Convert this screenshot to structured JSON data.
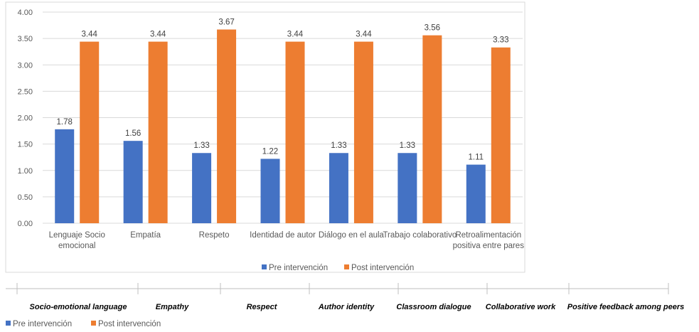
{
  "chart_data": {
    "type": "bar",
    "title": "",
    "xlabel": "",
    "ylabel": "",
    "ylim": [
      0,
      4
    ],
    "yticks": [
      "0.00",
      "0.50",
      "1.00",
      "1.50",
      "2.00",
      "2.50",
      "3.00",
      "3.50",
      "4.00"
    ],
    "grid": true,
    "legend_position": "bottom",
    "categories": [
      [
        "Lenguaje Socio",
        "emocional"
      ],
      [
        "Empatía"
      ],
      [
        "Respeto"
      ],
      [
        "Identidad de autor"
      ],
      [
        "Diálogo en el aula"
      ],
      [
        "Trabajo colaborativo"
      ],
      [
        "Retroalimentación",
        "positiva entre pares"
      ]
    ],
    "series": [
      {
        "name": "Pre intervención",
        "color": "#4472C4",
        "values": [
          1.78,
          1.56,
          1.33,
          1.22,
          1.33,
          1.33,
          1.11
        ],
        "labels": [
          "1.78",
          "1.56",
          "1.33",
          "1.22",
          "1.33",
          "1.33",
          "1.11"
        ]
      },
      {
        "name": "Post intervención",
        "color": "#ED7D31",
        "values": [
          3.44,
          3.44,
          3.67,
          3.44,
          3.44,
          3.56,
          3.33
        ],
        "labels": [
          "3.44",
          "3.44",
          "3.67",
          "3.44",
          "3.44",
          "3.56",
          "3.33"
        ]
      }
    ]
  },
  "english_categories": [
    "Socio-emotional language",
    "Empathy",
    "Respect",
    "Author identity",
    "Classroom dialogue",
    "Collaborative work",
    "Positive feedback among peers"
  ],
  "bottom_legend": [
    "Pre intervención",
    "Post intervención"
  ]
}
